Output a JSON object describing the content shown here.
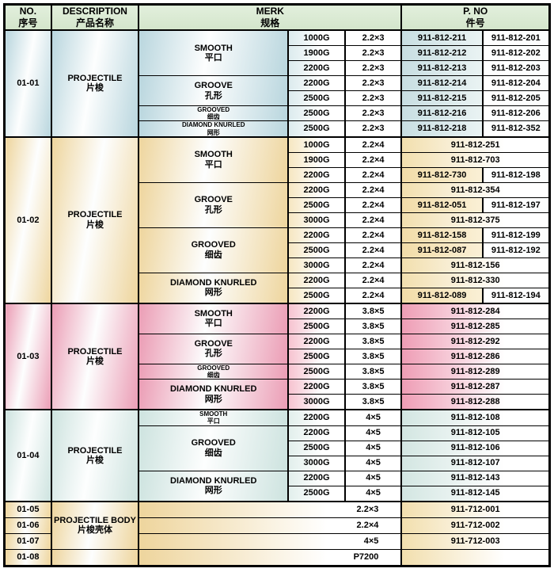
{
  "header": {
    "no": {
      "en": "NO.",
      "zh": "序号"
    },
    "description": {
      "en": "DESCRIPTION",
      "zh": "产品名称"
    },
    "merk": {
      "en": "MERK",
      "zh": "规格"
    },
    "pno": {
      "en": "P. NO",
      "zh": "件号"
    }
  },
  "colors": {
    "header_bg": "#d9e9d3",
    "section_blue": "#b9d6de",
    "section_cream": "#eed59d",
    "section_pink": "#eb9db5",
    "section_teal": "#cde3df",
    "border": "#000000"
  },
  "sections": [
    {
      "id": "01-01",
      "theme": "blue",
      "description": {
        "en": "PROJECTILE",
        "zh": "片梭"
      },
      "groups": [
        {
          "name": {
            "en": "SMOOTH",
            "zh": "平口"
          },
          "small": false,
          "rows": [
            {
              "g": "1000G",
              "size": "2.2×3",
              "pno": [
                "911-812-211",
                "911-812-201"
              ]
            },
            {
              "g": "1900G",
              "size": "2.2×3",
              "pno": [
                "911-812-212",
                "911-812-202"
              ]
            },
            {
              "g": "2200G",
              "size": "2.2×3",
              "pno": [
                "911-812-213",
                "911-812-203"
              ]
            }
          ]
        },
        {
          "name": {
            "en": "GROOVE",
            "zh": "孔形"
          },
          "small": false,
          "rows": [
            {
              "g": "2200G",
              "size": "2.2×3",
              "pno": [
                "911-812-214",
                "911-812-204"
              ]
            },
            {
              "g": "2500G",
              "size": "2.2×3",
              "pno": [
                "911-812-215",
                "911-812-205"
              ]
            }
          ]
        },
        {
          "name": {
            "en": "GROOVED",
            "zh": "细齿"
          },
          "small": true,
          "rows": [
            {
              "g": "2500G",
              "size": "2.2×3",
              "pno": [
                "911-812-216",
                "911-812-206"
              ]
            }
          ]
        },
        {
          "name": {
            "en": "DIAMOND KNURLED",
            "zh": "网形"
          },
          "small": true,
          "rows": [
            {
              "g": "2500G",
              "size": "2.2×3",
              "pno": [
                "911-812-218",
                "911-812-352"
              ]
            }
          ]
        }
      ]
    },
    {
      "id": "01-02",
      "theme": "cream",
      "description": {
        "en": "PROJECTILE",
        "zh": "片梭"
      },
      "groups": [
        {
          "name": {
            "en": "SMOOTH",
            "zh": "平口"
          },
          "small": false,
          "rows": [
            {
              "g": "1000G",
              "size": "2.2×4",
              "pno": "911-812-251"
            },
            {
              "g": "1900G",
              "size": "2.2×4",
              "pno": "911-812-703"
            },
            {
              "g": "2200G",
              "size": "2.2×4",
              "pno": [
                "911-812-730",
                "911-812-198"
              ]
            }
          ]
        },
        {
          "name": {
            "en": "GROOVE",
            "zh": "孔形"
          },
          "small": false,
          "rows": [
            {
              "g": "2200G",
              "size": "2.2×4",
              "pno": "911-812-354"
            },
            {
              "g": "2500G",
              "size": "2.2×4",
              "pno": [
                "911-812-051",
                "911-812-197"
              ]
            },
            {
              "g": "3000G",
              "size": "2.2×4",
              "pno": "911-812-375"
            }
          ]
        },
        {
          "name": {
            "en": "GROOVED",
            "zh": "细齿"
          },
          "small": false,
          "rows": [
            {
              "g": "2200G",
              "size": "2.2×4",
              "pno": [
                "911-812-158",
                "911-812-199"
              ]
            },
            {
              "g": "2500G",
              "size": "2.2×4",
              "pno": [
                "911-812-087",
                "911-812-192"
              ]
            },
            {
              "g": "3000G",
              "size": "2.2×4",
              "pno": "911-812-156"
            }
          ]
        },
        {
          "name": {
            "en": "DIAMOND KNURLED",
            "zh": "网形"
          },
          "small": false,
          "rows": [
            {
              "g": "2200G",
              "size": "2.2×4",
              "pno": "911-812-330"
            },
            {
              "g": "2500G",
              "size": "2.2×4",
              "pno": [
                "911-812-089",
                "911-812-194"
              ]
            }
          ]
        }
      ]
    },
    {
      "id": "01-03",
      "theme": "pink",
      "description": {
        "en": "PROJECTILE",
        "zh": "片梭"
      },
      "groups": [
        {
          "name": {
            "en": "SMOOTH",
            "zh": "平口"
          },
          "small": false,
          "rows": [
            {
              "g": "2200G",
              "size": "3.8×5",
              "pno": "911-812-284"
            },
            {
              "g": "2500G",
              "size": "3.8×5",
              "pno": "911-812-285"
            }
          ]
        },
        {
          "name": {
            "en": "GROOVE",
            "zh": "孔形"
          },
          "small": false,
          "rows": [
            {
              "g": "2200G",
              "size": "3.8×5",
              "pno": "911-812-292"
            },
            {
              "g": "2500G",
              "size": "3.8×5",
              "pno": "911-812-286"
            }
          ]
        },
        {
          "name": {
            "en": "GROOVED",
            "zh": "细齿"
          },
          "small": true,
          "rows": [
            {
              "g": "2500G",
              "size": "3.8×5",
              "pno": "911-812-289"
            }
          ]
        },
        {
          "name": {
            "en": "DIAMOND KNURLED",
            "zh": "网形"
          },
          "small": false,
          "rows": [
            {
              "g": "2200G",
              "size": "3.8×5",
              "pno": "911-812-287"
            },
            {
              "g": "3000G",
              "size": "3.8×5",
              "pno": "911-812-288"
            }
          ]
        }
      ]
    },
    {
      "id": "01-04",
      "theme": "teal",
      "description": {
        "en": "PROJECTILE",
        "zh": "片梭"
      },
      "groups": [
        {
          "name": {
            "en": "SMOOTH",
            "zh": "平口"
          },
          "small": true,
          "rows": [
            {
              "g": "2200G",
              "size": "4×5",
              "pno": "911-812-108"
            }
          ]
        },
        {
          "name": {
            "en": "GROOVED",
            "zh": "细齿"
          },
          "small": false,
          "rows": [
            {
              "g": "2200G",
              "size": "4×5",
              "pno": "911-812-105"
            },
            {
              "g": "2500G",
              "size": "4×5",
              "pno": "911-812-106"
            },
            {
              "g": "3000G",
              "size": "4×5",
              "pno": "911-812-107"
            }
          ]
        },
        {
          "name": {
            "en": "DIAMOND KNURLED",
            "zh": "网形"
          },
          "small": false,
          "rows": [
            {
              "g": "2200G",
              "size": "4×5",
              "pno": "911-812-143"
            },
            {
              "g": "2500G",
              "size": "4×5",
              "pno": "911-812-145"
            }
          ]
        }
      ]
    }
  ],
  "simple_section": {
    "theme": "cream",
    "description": {
      "en": "PROJECTILE BODY",
      "zh": "片梭壳体"
    },
    "description_rows": 3,
    "rows": [
      {
        "no": "01-05",
        "merk": "2.2×3",
        "pno": "911-712-001"
      },
      {
        "no": "01-06",
        "merk": "2.2×4",
        "pno": "911-712-002"
      },
      {
        "no": "01-07",
        "merk": "4×5",
        "pno": "911-712-003"
      },
      {
        "no": "01-08",
        "merk": "P7200",
        "pno": ""
      }
    ]
  }
}
